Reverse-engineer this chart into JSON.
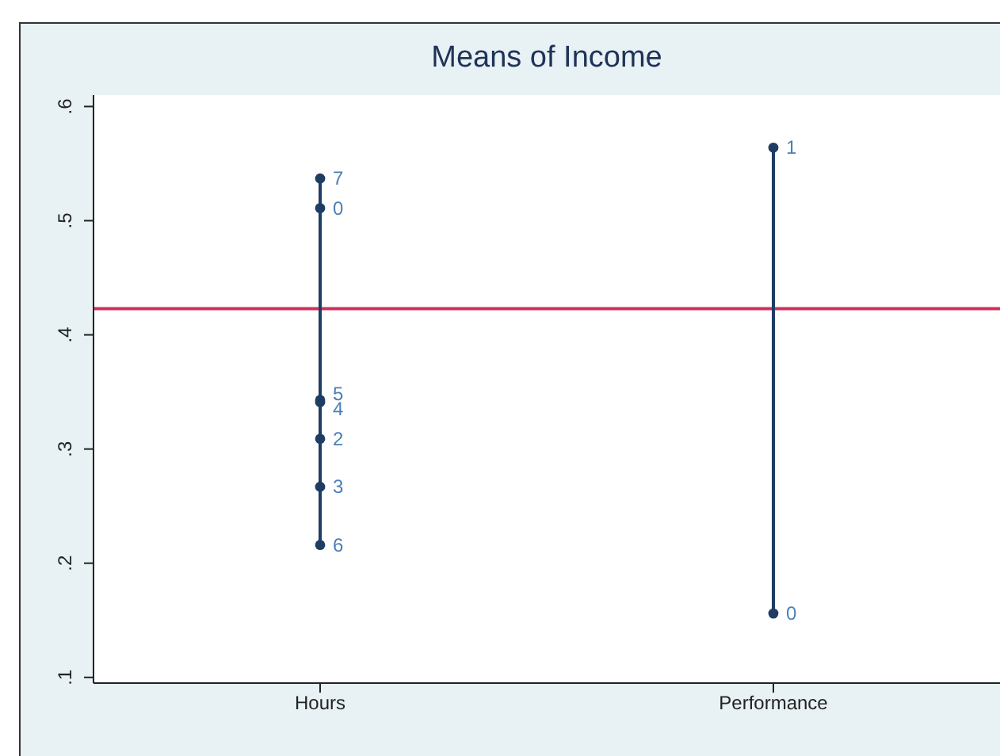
{
  "chart_data": {
    "type": "scatter",
    "title": "Means of Income",
    "categories": [
      "Hours",
      "Performance"
    ],
    "series": [
      {
        "type": "line",
        "color": "#1f3d63",
        "x": [
          "Hours",
          "Hours",
          "Hours",
          "Hours",
          "Hours",
          "Hours",
          "Hours"
        ],
        "values": [
          0.537,
          0.511,
          0.343,
          0.341,
          0.309,
          0.267,
          0.216
        ]
      },
      {
        "type": "line",
        "color": "#1f3d63",
        "x": [
          "Performance",
          "Performance"
        ],
        "values": [
          0.564,
          0.156
        ]
      }
    ],
    "annotations": [
      {
        "text": "7",
        "x": "Hours",
        "y": 0.537
      },
      {
        "text": "0",
        "x": "Hours",
        "y": 0.511
      },
      {
        "text": "5",
        "x": "Hours",
        "y": 0.343
      },
      {
        "text": "4",
        "x": "Hours",
        "y": 0.341
      },
      {
        "text": "2",
        "x": "Hours",
        "y": 0.309
      },
      {
        "text": "3",
        "x": "Hours",
        "y": 0.267
      },
      {
        "text": "6",
        "x": "Hours",
        "y": 0.216
      },
      {
        "text": "1",
        "x": "Performance",
        "y": 0.564
      },
      {
        "text": "0",
        "x": "Performance",
        "y": 0.156
      }
    ],
    "marker": "circle",
    "ylim": [
      0.095,
      0.61
    ],
    "yticks": [
      {
        "value": 0.1,
        "label": ".1"
      },
      {
        "value": 0.2,
        "label": ".2"
      },
      {
        "value": 0.3,
        "label": ".3"
      },
      {
        "value": 0.4,
        "label": ".4"
      },
      {
        "value": 0.5,
        "label": ".5"
      },
      {
        "value": 0.6,
        "label": ".6"
      }
    ],
    "ref_lines": [
      {
        "axis": "y",
        "value": 0.423,
        "color": "#d0305a"
      }
    ],
    "grid": false
  }
}
